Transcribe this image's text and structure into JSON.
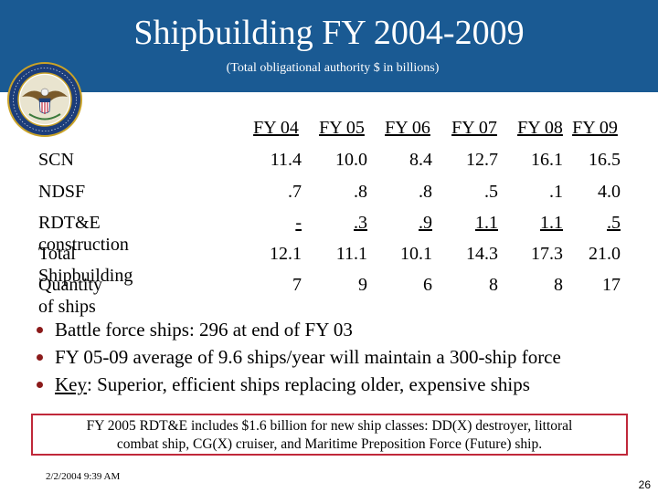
{
  "header": {
    "title": "Shipbuilding FY 2004-2009",
    "subtitle": "(Total obligational authority  $ in billions)"
  },
  "seal": {
    "icon": "department-of-defense-seal",
    "text": "DEPARTMENT OF DEFENSE · UNITED STATES OF AMERICA"
  },
  "table": {
    "columns": [
      "FY 04",
      "FY 05",
      "FY 06",
      "FY 07",
      "FY 08",
      "FY 09"
    ],
    "rows": [
      {
        "label": "SCN",
        "values": [
          "11.4",
          "10.0",
          "8.4",
          "12.7",
          "16.1",
          "16.5"
        ]
      },
      {
        "label": "NDSF",
        "values": [
          ".7",
          ".8",
          ".8",
          ".5",
          ".1",
          "4.0"
        ]
      },
      {
        "label": "RDT&E construction",
        "values": [
          "-",
          ".3",
          ".9",
          "1.1",
          "1.1",
          ".5"
        ]
      },
      {
        "label": "Total Shipbuilding",
        "values": [
          "12.1",
          "11.1",
          "10.1",
          "14.3",
          "17.3",
          "21.0"
        ]
      },
      {
        "label": "Quantity of ships",
        "values": [
          "7",
          "9",
          "6",
          "8",
          "8",
          "17"
        ]
      }
    ]
  },
  "bullets": {
    "b1": "Battle force ships:  296 at end of FY 03",
    "b2": "FY 05-09 average of 9.6 ships/year will maintain a 300-ship force",
    "b3_key": "Key",
    "b3_rest": ":  Superior, efficient ships replacing older, expensive ships"
  },
  "note": {
    "line1": "FY 2005 RDT&E includes $1.6 billion for new ship classes:  DD(X) destroyer, littoral",
    "line2": "combat ship, CG(X) cruiser, and Maritime Preposition Force (Future) ship."
  },
  "footer": {
    "date": "2/2/2004 9:39 AM",
    "page": "26"
  },
  "colors": {
    "banner": "#1a5a93",
    "bullet": "#8b1a1a",
    "note_border": "#c0283a"
  }
}
